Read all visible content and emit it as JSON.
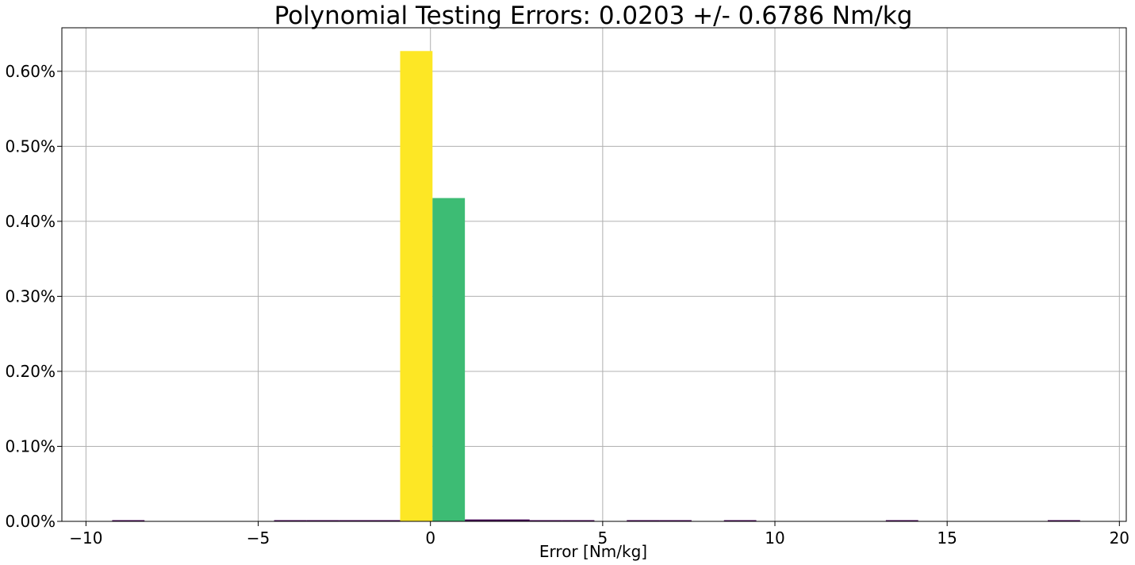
{
  "chart_data": {
    "type": "bar",
    "title": "Polynomial Testing Errors: 0.0203 +/- 0.6786 Nm/kg",
    "xlabel": "Error [Nm/kg]",
    "ylabel": "",
    "xlim": [
      -10.7,
      20.2
    ],
    "ylim": [
      0,
      0.00658
    ],
    "grid": true,
    "bin_width": 0.94,
    "bins": [
      {
        "x0": -9.24,
        "value": 5e-06,
        "color": "#440154"
      },
      {
        "x0": -4.54,
        "value": 5e-06,
        "color": "#440154"
      },
      {
        "x0": -3.6,
        "value": 5e-06,
        "color": "#440154"
      },
      {
        "x0": -2.66,
        "value": 5e-06,
        "color": "#440154"
      },
      {
        "x0": -1.72,
        "value": 5e-06,
        "color": "#440154"
      },
      {
        "x0": -0.88,
        "value": 0.00627,
        "color": "#fde725"
      },
      {
        "x0": 0.06,
        "value": 0.00431,
        "color": "#3dbc74"
      },
      {
        "x0": 1.0,
        "value": 2.5e-05,
        "color": "#440154"
      },
      {
        "x0": 1.94,
        "value": 2.5e-05,
        "color": "#440154"
      },
      {
        "x0": 2.88,
        "value": 8e-06,
        "color": "#440154"
      },
      {
        "x0": 3.82,
        "value": 8e-06,
        "color": "#440154"
      },
      {
        "x0": 5.7,
        "value": 5e-06,
        "color": "#440154"
      },
      {
        "x0": 6.64,
        "value": 5e-06,
        "color": "#440154"
      },
      {
        "x0": 8.52,
        "value": 5e-06,
        "color": "#440154"
      },
      {
        "x0": 13.22,
        "value": 5e-06,
        "color": "#440154"
      },
      {
        "x0": 17.92,
        "value": 5e-06,
        "color": "#440154"
      }
    ],
    "x_ticks": [
      {
        "value": -10,
        "label": "−10"
      },
      {
        "value": -5,
        "label": "−5"
      },
      {
        "value": 0,
        "label": "0"
      },
      {
        "value": 5,
        "label": "5"
      },
      {
        "value": 10,
        "label": "10"
      },
      {
        "value": 15,
        "label": "15"
      },
      {
        "value": 20,
        "label": "20"
      }
    ],
    "y_ticks": [
      {
        "value": 0.0,
        "label": "0.00%"
      },
      {
        "value": 0.001,
        "label": "0.10%"
      },
      {
        "value": 0.002,
        "label": "0.20%"
      },
      {
        "value": 0.003,
        "label": "0.30%"
      },
      {
        "value": 0.004,
        "label": "0.40%"
      },
      {
        "value": 0.005,
        "label": "0.50%"
      },
      {
        "value": 0.006,
        "label": "0.60%"
      }
    ],
    "colors": {
      "grid": "#b0b0b0",
      "axis": "#000000"
    }
  }
}
